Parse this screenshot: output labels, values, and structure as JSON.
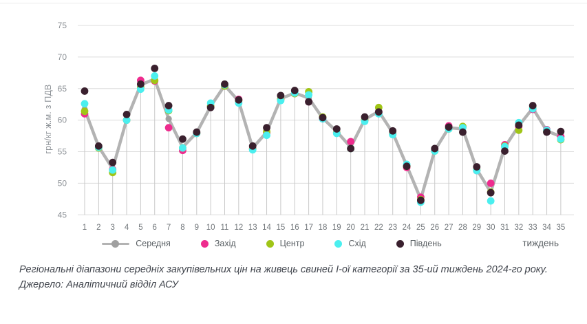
{
  "chart_data": {
    "type": "line",
    "title": "",
    "xlabel": "тиждень",
    "ylabel": "грн/кг ж.м. з ПДВ",
    "ylim": [
      45,
      75
    ],
    "ytick_step": 5,
    "yticks": [
      45,
      50,
      55,
      60,
      65,
      70,
      75
    ],
    "grid": "horizontal gridlines + vertical drop line under each week cluster",
    "legend_position": "bottom",
    "x": [
      1,
      2,
      3,
      4,
      5,
      6,
      7,
      8,
      9,
      10,
      11,
      12,
      13,
      14,
      15,
      16,
      17,
      18,
      19,
      20,
      21,
      22,
      23,
      24,
      25,
      26,
      27,
      28,
      29,
      30,
      31,
      32,
      33,
      34,
      35
    ],
    "series": [
      {
        "name": "Середня",
        "slug": "average",
        "style": "line-with-markers",
        "color": "#b3b3b3",
        "marker_color": "#a0a0a0",
        "values": [
          61.7,
          55.8,
          52.3,
          60.1,
          65.6,
          66.5,
          60.2,
          55.7,
          58.0,
          62.2,
          65.5,
          63.0,
          55.6,
          58.1,
          63.4,
          64.3,
          63.5,
          60.3,
          58.2,
          55.7,
          60.1,
          61.4,
          58.0,
          52.8,
          47.5,
          55.2,
          58.8,
          58.6,
          52.2,
          48.6,
          55.7,
          59.1,
          61.9,
          58.3,
          57.4
        ]
      },
      {
        "name": "Захід",
        "slug": "west",
        "style": "markers",
        "color": "#ee2c8e",
        "values": [
          61.0,
          55.7,
          52.2,
          60.0,
          66.3,
          66.2,
          58.8,
          55.2,
          57.9,
          62.2,
          65.4,
          63.3,
          55.5,
          58.0,
          63.3,
          64.2,
          62.9,
          60.2,
          58.0,
          56.6,
          60.0,
          61.3,
          57.8,
          52.5,
          47.8,
          55.2,
          59.1,
          58.9,
          52.0,
          50.0,
          56.1,
          59.0,
          61.7,
          58.5,
          57.4
        ]
      },
      {
        "name": "Центр",
        "slug": "center",
        "style": "markers",
        "color": "#a0c517",
        "values": [
          61.4,
          55.6,
          51.7,
          60.0,
          65.2,
          66.3,
          61.5,
          55.6,
          57.9,
          62.2,
          65.4,
          63.1,
          55.4,
          58.2,
          63.3,
          64.2,
          64.5,
          60.5,
          58.0,
          55.5,
          60.0,
          62.0,
          57.8,
          52.7,
          47.4,
          55.1,
          58.6,
          59.0,
          52.1,
          48.6,
          55.9,
          58.4,
          61.9,
          58.2,
          56.9
        ]
      },
      {
        "name": "Схід",
        "slug": "east",
        "style": "markers",
        "color": "#4BEFEF",
        "values": [
          62.6,
          55.7,
          52.1,
          60.0,
          64.9,
          67.0,
          61.6,
          55.6,
          57.9,
          62.7,
          65.6,
          62.7,
          55.3,
          57.6,
          63.1,
          64.3,
          64.0,
          60.2,
          57.9,
          55.5,
          59.8,
          61.0,
          57.7,
          53.0,
          47.0,
          55.1,
          58.6,
          58.8,
          52.0,
          47.2,
          55.8,
          59.6,
          61.8,
          58.4,
          57.0
        ]
      },
      {
        "name": "Південь",
        "slug": "south",
        "style": "markers",
        "color": "#3a202e",
        "values": [
          64.6,
          55.9,
          53.3,
          60.9,
          65.7,
          68.2,
          62.3,
          57.0,
          58.1,
          62.0,
          65.7,
          63.2,
          55.9,
          58.8,
          63.9,
          64.7,
          62.9,
          60.4,
          58.6,
          55.5,
          60.5,
          61.3,
          58.3,
          52.7,
          47.3,
          55.5,
          58.9,
          58.1,
          52.6,
          48.5,
          55.1,
          59.2,
          62.3,
          58.1,
          58.2
        ]
      }
    ],
    "colors": {
      "gridline": "#dcdcdc",
      "drop_line": "#c8c8c8",
      "tick_text": "#8c9196",
      "legend_text": "#595f63"
    }
  },
  "caption": {
    "text": "Регіональні діапазони середніх закупівельних цін на живець свиней І-ої категорії за 35-ий тиждень 2024-го року.",
    "source": "Джерело: Аналітичний відділ АСУ"
  }
}
